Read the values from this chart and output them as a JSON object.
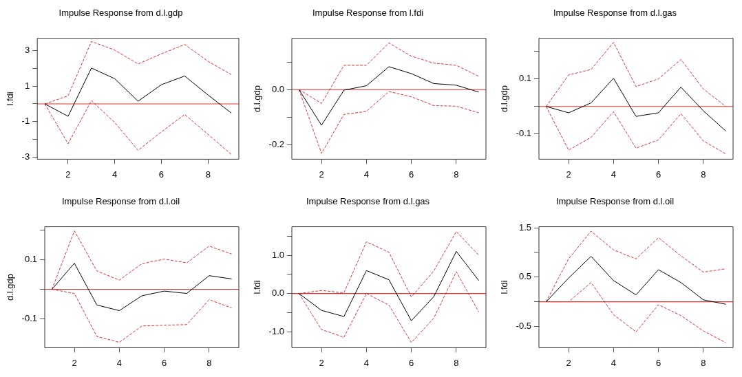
{
  "chart_data": [
    {
      "type": "line",
      "title": "Impulse Response from d.l.gdp",
      "ylabel": "l.fdi",
      "x": [
        1,
        2,
        3,
        4,
        5,
        6,
        7,
        8,
        9
      ],
      "xlim": [
        0.68,
        9.32
      ],
      "xticks": [
        2,
        4,
        6,
        8
      ],
      "ylim": [
        -3.12,
        3.7
      ],
      "yticks": [
        -3,
        {
          "value": -2,
          "label": null
        },
        -1,
        {
          "value": 0,
          "label": null
        },
        1,
        {
          "value": 2,
          "label": null
        },
        3
      ],
      "grid": false,
      "legend": false,
      "marker": "none",
      "series": [
        {
          "color": "#000000",
          "line_style": "solid",
          "values": [
            0,
            -0.7,
            2.02,
            1.42,
            0.15,
            1.08,
            1.57,
            0.5,
            -0.52
          ]
        },
        {
          "color": "#dd3333",
          "line_style": "dashed",
          "values": [
            0,
            0.45,
            3.52,
            3.03,
            2.25,
            2.82,
            3.35,
            2.4,
            1.65
          ]
        },
        {
          "color": "#dd3333",
          "line_style": "dashed",
          "values": [
            0,
            -2.25,
            0.18,
            -1.05,
            -2.62,
            -1.58,
            -0.6,
            -1.72,
            -2.85
          ]
        }
      ],
      "ref_lines": [
        {
          "axis": "y",
          "value": 0,
          "color": "#e03030"
        }
      ]
    },
    {
      "type": "line",
      "title": "Impulse Response from l.fdi",
      "ylabel": "d.l.gdp",
      "x": [
        1,
        2,
        3,
        4,
        5,
        6,
        7,
        8,
        9
      ],
      "xlim": [
        0.68,
        9.32
      ],
      "xticks": [
        2,
        4,
        6,
        8
      ],
      "ylim": [
        -0.252,
        0.186
      ],
      "yticks": [
        {
          "value": -0.2,
          "label": "-0.2"
        },
        {
          "value": -0.1,
          "label": null
        },
        {
          "value": 0,
          "label": "0.0"
        },
        {
          "value": 0.1,
          "label": null
        }
      ],
      "grid": false,
      "legend": false,
      "marker": "none",
      "series": [
        {
          "color": "#000000",
          "line_style": "solid",
          "values": [
            0,
            -0.129,
            -0.002,
            0.014,
            0.083,
            0.058,
            0.022,
            0.016,
            -0.009
          ]
        },
        {
          "color": "#dd3333",
          "line_style": "dashed",
          "values": [
            0,
            -0.05,
            0.088,
            0.088,
            0.169,
            0.121,
            0.096,
            0.088,
            0.048
          ]
        },
        {
          "color": "#dd3333",
          "line_style": "dashed",
          "values": [
            0,
            -0.231,
            -0.09,
            -0.079,
            -0.007,
            -0.026,
            -0.058,
            -0.06,
            -0.084
          ]
        }
      ],
      "ref_lines": [
        {
          "axis": "y",
          "value": 0,
          "color": "#e03030"
        }
      ]
    },
    {
      "type": "line",
      "title": "Impulse Response from d.l.gas",
      "ylabel": "d.l.gdp",
      "x": [
        1,
        2,
        3,
        4,
        5,
        6,
        7,
        8,
        9
      ],
      "xlim": [
        0.68,
        9.32
      ],
      "xticks": [
        2,
        4,
        6,
        8
      ],
      "ylim": [
        -0.191,
        0.247
      ],
      "yticks": [
        -0.1,
        {
          "value": 0,
          "label": null
        },
        0.1,
        {
          "value": 0.2,
          "label": null
        }
      ],
      "grid": false,
      "legend": false,
      "marker": "none",
      "series": [
        {
          "color": "#000000",
          "line_style": "solid",
          "values": [
            0,
            -0.023,
            0.013,
            0.102,
            -0.036,
            -0.023,
            0.07,
            -0.016,
            -0.089
          ]
        },
        {
          "color": "#dd3333",
          "line_style": "dashed",
          "values": [
            0,
            0.114,
            0.134,
            0.232,
            0.072,
            0.1,
            0.17,
            0.063,
            0
          ]
        },
        {
          "color": "#dd3333",
          "line_style": "dashed",
          "values": [
            0,
            -0.158,
            -0.112,
            -0.019,
            -0.151,
            -0.121,
            -0.026,
            -0.125,
            -0.172
          ]
        }
      ],
      "ref_lines": [
        {
          "axis": "y",
          "value": 0,
          "color": "#e03030"
        }
      ]
    },
    {
      "type": "line",
      "title": "Impulse Response from d.l.oil",
      "ylabel": "d.l.gdp",
      "x": [
        1,
        2,
        3,
        4,
        5,
        6,
        7,
        8,
        9
      ],
      "xlim": [
        0.68,
        9.32
      ],
      "xticks": [
        2,
        4,
        6,
        8
      ],
      "ylim": [
        -0.197,
        0.211
      ],
      "yticks": [
        -0.1,
        {
          "value": 0,
          "label": null
        },
        0.1,
        {
          "value": 0.2,
          "label": null
        }
      ],
      "grid": false,
      "legend": false,
      "marker": "none",
      "series": [
        {
          "color": "#000000",
          "line_style": "solid",
          "values": [
            0,
            0.088,
            -0.053,
            -0.072,
            -0.022,
            -0.006,
            -0.014,
            0.046,
            0.035
          ]
        },
        {
          "color": "#dd3333",
          "line_style": "dashed",
          "values": [
            0,
            0.197,
            0.062,
            0.031,
            0.086,
            0.102,
            0.089,
            0.146,
            0.119
          ]
        },
        {
          "color": "#dd3333",
          "line_style": "dashed",
          "values": [
            0,
            -0.014,
            -0.159,
            -0.179,
            -0.124,
            -0.121,
            -0.119,
            -0.035,
            -0.063
          ]
        }
      ],
      "ref_lines": [
        {
          "axis": "y",
          "value": 0,
          "color": "#e03030"
        }
      ]
    },
    {
      "type": "line",
      "title": "Impulse Response from d.l.gas",
      "ylabel": "l.fdi",
      "x": [
        1,
        2,
        3,
        4,
        5,
        6,
        7,
        8,
        9
      ],
      "xlim": [
        0.68,
        9.32
      ],
      "xticks": [
        2,
        4,
        6,
        8
      ],
      "ylim": [
        -1.414,
        1.744
      ],
      "yticks": [
        {
          "value": -1,
          "label": "-1.0"
        },
        {
          "value": -0.5,
          "label": null
        },
        {
          "value": 0,
          "label": "0.0"
        },
        {
          "value": 0.5,
          "label": null
        },
        {
          "value": 1,
          "label": "1.0"
        },
        {
          "value": 1.5,
          "label": null
        }
      ],
      "grid": false,
      "legend": false,
      "marker": "none",
      "series": [
        {
          "color": "#000000",
          "line_style": "solid",
          "values": [
            0,
            -0.44,
            -0.6,
            0.6,
            0.36,
            -0.71,
            -0.08,
            1.1,
            0.34
          ]
        },
        {
          "color": "#dd3333",
          "line_style": "dashed",
          "values": [
            0,
            0.08,
            0.02,
            1.35,
            1.08,
            -0.09,
            0.59,
            1.62,
            1.0
          ]
        },
        {
          "color": "#dd3333",
          "line_style": "dashed",
          "values": [
            0,
            -0.94,
            -1.14,
            0,
            -0.3,
            -1.28,
            -0.64,
            0.57,
            -0.48
          ]
        }
      ],
      "ref_lines": [
        {
          "axis": "y",
          "value": 0,
          "color": "#e03030"
        }
      ]
    },
    {
      "type": "line",
      "title": "Impulse Response from d.l.oil",
      "ylabel": "l.fdi",
      "x": [
        1,
        2,
        3,
        4,
        5,
        6,
        7,
        8,
        9
      ],
      "xlim": [
        0.68,
        9.32
      ],
      "xticks": [
        2,
        4,
        6,
        8
      ],
      "ylim": [
        -0.93,
        1.52
      ],
      "yticks": [
        -0.5,
        {
          "value": 0,
          "label": null
        },
        0.5,
        {
          "value": 1,
          "label": null
        },
        1.5
      ],
      "grid": false,
      "legend": false,
      "marker": "none",
      "series": [
        {
          "color": "#000000",
          "line_style": "solid",
          "values": [
            0,
            0.48,
            0.92,
            0.43,
            0.14,
            0.65,
            0.39,
            0.04,
            -0.05
          ]
        },
        {
          "color": "#dd3333",
          "line_style": "dashed",
          "values": [
            0,
            0.87,
            1.43,
            1.05,
            0.87,
            1.3,
            0.93,
            0.6,
            0.67
          ]
        },
        {
          "color": "#dd3333",
          "line_style": "dashed",
          "values": [
            0,
            0,
            0.39,
            -0.26,
            -0.61,
            -0.06,
            -0.28,
            -0.59,
            -0.83
          ]
        }
      ],
      "ref_lines": [
        {
          "axis": "y",
          "value": 0,
          "color": "#e03030"
        }
      ]
    }
  ]
}
